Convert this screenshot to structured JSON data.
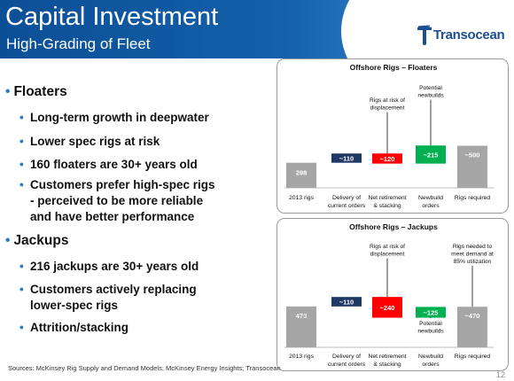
{
  "header": {
    "title": "Capital Investment",
    "subtitle": "High-Grading of Fleet",
    "logo_text": "Transocean"
  },
  "bullets": {
    "floaters": {
      "heading": "Floaters",
      "items": [
        "Long-term growth in deepwater",
        "Lower spec rigs at risk",
        "160 floaters are 30+ years old",
        "Customers prefer high-spec rigs",
        "- perceived to be more reliable",
        "and have better performance"
      ]
    },
    "jackups": {
      "heading": "Jackups",
      "items": [
        "216 jackups are 30+ years old",
        "Customers actively replacing",
        "lower-spec rigs",
        "Attrition/stacking"
      ]
    }
  },
  "chart_data": [
    {
      "type": "bar",
      "title": "Offshore Rigs – Floaters",
      "categories": [
        "2013 rigs",
        "Delivery of current orders",
        "Net retirement & stacking",
        "Newbuild orders",
        "Rigs required"
      ],
      "category_lines": [
        [
          "2013 rigs"
        ],
        [
          "Delivery of",
          "current orders"
        ],
        [
          "Net retirement",
          "& stacking"
        ],
        [
          "Newbuild",
          "orders"
        ],
        [
          "Rigs required"
        ]
      ],
      "values": [
        298,
        110,
        -120,
        215,
        500
      ],
      "labels": [
        "298",
        "~110",
        "~120",
        "~215",
        "~500"
      ],
      "colors": [
        "#a6a6a6",
        "#1f3864",
        "#ff0000",
        "#00b050",
        "#a6a6a6"
      ],
      "annotations": [
        {
          "bar": 2,
          "lines": [
            "Rigs at risk of",
            "displacement"
          ]
        },
        {
          "bar": 3,
          "lines": [
            "Potential",
            "newbuilds"
          ]
        }
      ]
    },
    {
      "type": "bar",
      "title": "Offshore Rigs – Jackups",
      "categories": [
        "2013 rigs",
        "Delivery of current orders",
        "Net retirement & stacking",
        "Newbuild orders",
        "Rigs required"
      ],
      "category_lines": [
        [
          "2013 rigs"
        ],
        [
          "Delivery of",
          "current orders"
        ],
        [
          "Net retirement",
          "& stacking"
        ],
        [
          "Newbuild",
          "orders"
        ],
        [
          "Rigs required"
        ]
      ],
      "values": [
        473,
        110,
        -240,
        125,
        470
      ],
      "labels": [
        "473",
        "~110",
        "~240",
        "~125",
        "~470"
      ],
      "colors": [
        "#a6a6a6",
        "#1f3864",
        "#ff0000",
        "#00b050",
        "#a6a6a6"
      ],
      "annotations": [
        {
          "bar": 2,
          "lines": [
            "Rigs at risk of",
            "displacement"
          ]
        },
        {
          "bar": 3,
          "lines": [
            "Potential",
            "newbuilds"
          ]
        },
        {
          "bar": 4,
          "lines": [
            "Rigs needed to",
            "meet demand at",
            "85% utilization"
          ]
        }
      ]
    }
  ],
  "footer": {
    "sources": "Sources: McKinsey Rig Supply and Demand Models;  McKinsey Energy Insights; Transocean",
    "page_number": "12"
  },
  "colors": {
    "header_blue": "#0b4f97",
    "bullet_blue": "#2b7bc6",
    "logo_blue": "#1b4e92"
  },
  "icons": {
    "bullet": "bullet-dot-icon",
    "logo": "transocean-logo-icon"
  }
}
